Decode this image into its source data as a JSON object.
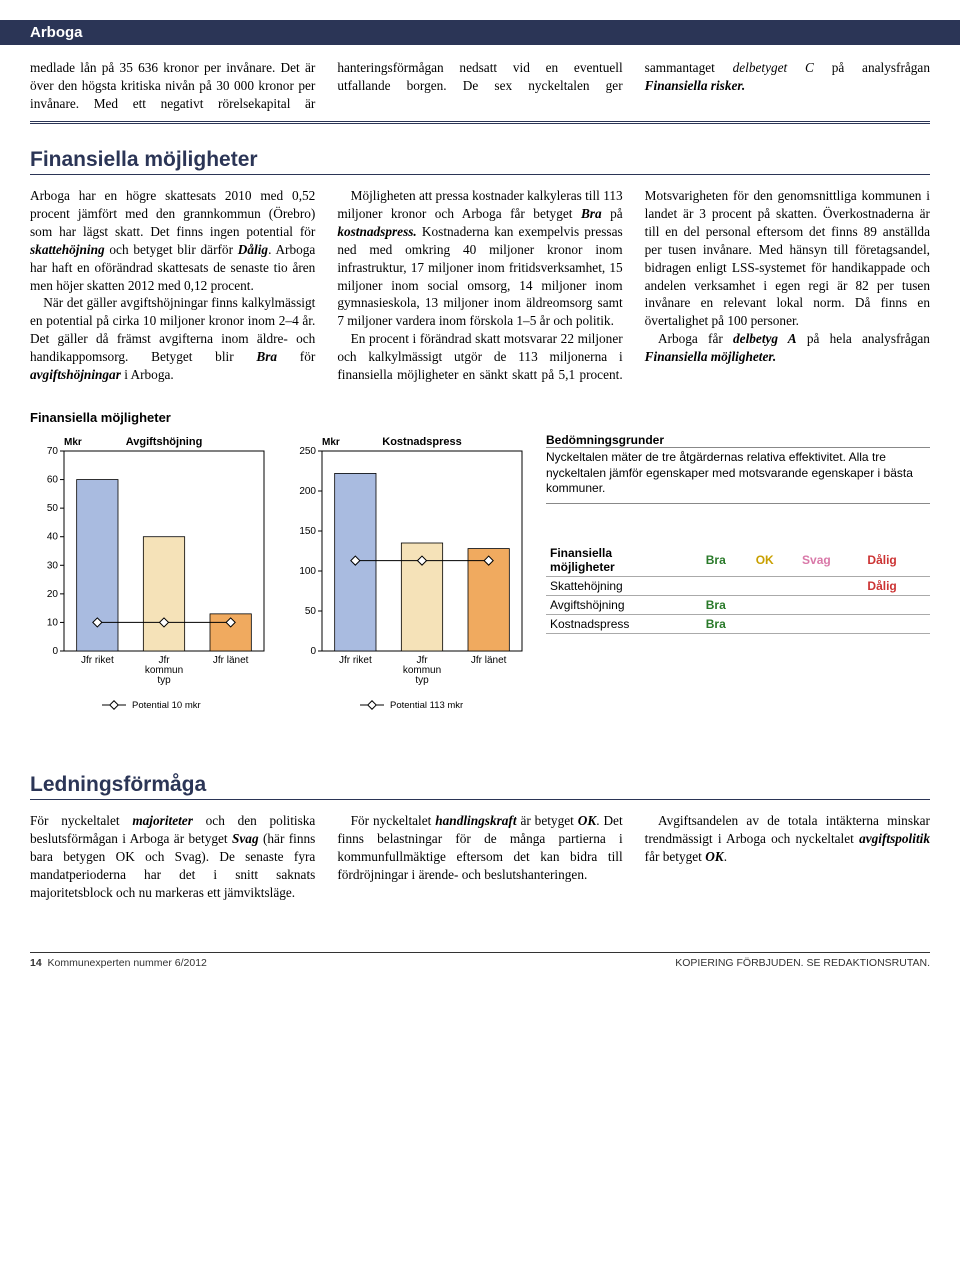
{
  "header": "Arboga",
  "intro": "medlade lån på 35 636 kronor per invånare. Det är över den högsta kritiska nivån på 30 000 kronor per invånare. Med ett negativt rörelsekapital är hanteringsförmågan nedsatt vid en eventuell utfallande borgen. De sex nyckeltalen ger sammantaget <i>delbetyget C</i> på analysfrågan <i><b>Finansiella risker.</b></i>",
  "sec1_title": "Finansiella möjligheter",
  "sec1_body": [
    "Arboga har en högre skattesats 2010 med 0,52 procent jämfört med den grannkommun (Örebro) som har lägst skatt. Det finns ingen potential för <i><b>skattehöjning</b></i> och betyget blir därför <i><b>Dålig</b></i>. Arboga har haft en oförändrad skattesats de senaste tio åren men höjer skatten 2012 med 0,12 procent.",
    "När det gäller avgiftshöjningar finns kalkylmässigt en potential på cirka 10 miljoner kronor inom 2–4 år. Det gäller då främst avgifterna inom äldre- och handikappomsorg. Betyget blir <i><b>Bra</b></i> för <i><b>avgiftshöjningar</b></i> i Arboga.",
    "Möjligheten att pressa kostnader kalkyleras till 113 miljoner kronor och Arboga får betyget <i><b>Bra</b></i> på <i><b>kostnadspress.</b></i> Kostnaderna kan exempelvis pressas ned med omkring 40 miljoner kronor inom infrastruktur, 17 miljoner inom fritidsverksamhet, 15 miljoner inom social omsorg, 14 miljoner inom gymnasieskola, 13 miljoner inom äldreomsorg samt 7 miljoner vardera inom förskola 1–5 år och politik.",
    "En procent i förändrad skatt motsvarar 22 miljoner och kalkylmässigt utgör de 113 miljonerna i finansiella möjligheter en sänkt skatt på 5,1 procent. Motsvarigheten för den genomsnittliga kommunen i landet är 3 procent på skatten. Överkostnaderna är till en del personal eftersom det finns 89 anställda per tusen invånare. Med hänsyn till företagsandel, bidragen enligt LSS-systemet för handikappade och andelen verksamhet i egen regi är 82 per tusen invånare en relevant lokal norm. Då finns en övertalighet på 100 personer.",
    "Arboga får <i><b>delbetyg A</b></i> på hela analysfrågan <i><b>Finansiella möjligheter.</b></i>"
  ],
  "chart_section_title": "Finansiella möjligheter",
  "chart1": {
    "title": "Avgiftshöjning",
    "unit_label": "Mkr",
    "ymax": 70,
    "ystep": 10,
    "categories": [
      "Jfr riket",
      "Jfr\nkommun\ntyp",
      "Jfr länet"
    ],
    "values": [
      60,
      40,
      13
    ],
    "bar_colors": [
      "#a9bbe0",
      "#f5e2b8",
      "#f0aa5f"
    ],
    "potential_label": "Potential 10 mkr",
    "potential_value": 10
  },
  "chart2": {
    "title": "Kostnadspress",
    "unit_label": "Mkr",
    "ymax": 250,
    "ystep": 50,
    "categories": [
      "Jfr riket",
      "Jfr\nkommun\ntyp",
      "Jfr länet"
    ],
    "values": [
      222,
      135,
      128
    ],
    "bar_colors": [
      "#a9bbe0",
      "#f5e2b8",
      "#f0aa5f"
    ],
    "potential_label": "Potential 113 mkr",
    "potential_value": 113
  },
  "grade_title": "Bedömningsgrunder",
  "grade_desc": "Nyckeltalen mäter de tre åtgärdernas relativa effektivitet. Alla tre nyckeltalen jämför egenskaper med motsvarande egenskaper i bästa kommuner.",
  "grade_table": {
    "header_left": "Finansiella\nmöjligheter",
    "cols": [
      "Bra",
      "OK",
      "Svag",
      "Dålig"
    ],
    "rows": [
      {
        "label": "Skattehöjning",
        "grade": "Dålig"
      },
      {
        "label": "Avgiftshöjning",
        "grade": "Bra"
      },
      {
        "label": "Kostnadspress",
        "grade": "Bra"
      }
    ]
  },
  "sec2_title": "Ledningsförmåga",
  "sec2_body": [
    "För nyckeltalet <i><b>majoriteter</b></i> och den politiska beslutsförmågan i Arboga är betyget <i><b>Svag</b></i> (här finns bara betygen OK och Svag). De senaste fyra mandatperioderna har det i snitt saknats majoritetsblock och nu markeras ett jämviktsläge.",
    "För nyckeltalet <i><b>handlingskraft</b></i> är betyget <i><b>OK</b></i>. Det finns belastningar för de många partierna i kommunfullmäktige eftersom det kan bidra till fördröjningar i ärende- och beslutshanteringen.",
    "Avgiftsandelen av de totala intäkterna minskar trendmässigt i Arboga och nyckeltalet <i><b>avgiftspolitik</b></i> får betyget <i><b>OK</b></i>."
  ],
  "footer_left_page": "14",
  "footer_left_text": "Kommunexperten nummer 6/2012",
  "footer_right": "KOPIERING FÖRBJUDEN. SE REDAKTIONSRUTAN."
}
